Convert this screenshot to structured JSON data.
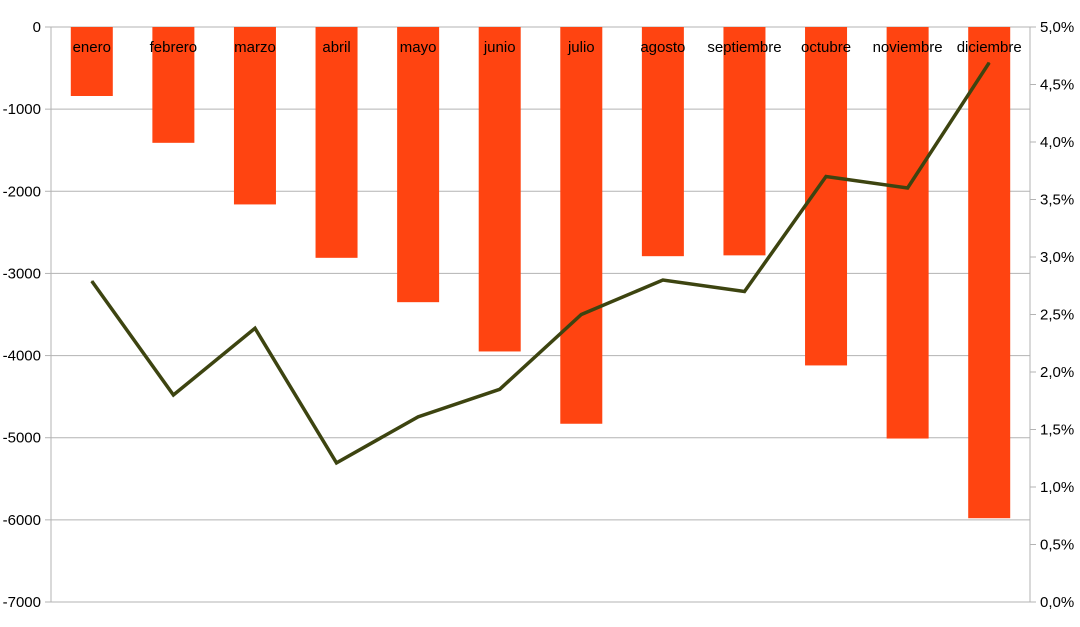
{
  "chart_data": {
    "type": "bar",
    "categories": [
      "enero",
      "febrero",
      "marzo",
      "abril",
      "mayo",
      "junio",
      "julio",
      "agosto",
      "septiembre",
      "octubre",
      "noviembre",
      "diciembre"
    ],
    "series": [
      {
        "type": "bar",
        "axis": "left",
        "color": "#ff4411",
        "values": [
          -840,
          -1410,
          -2160,
          -2810,
          -3350,
          -3950,
          -4830,
          -2790,
          -2780,
          -4120,
          -5010,
          -5980
        ]
      },
      {
        "type": "line",
        "axis": "right",
        "color": "#3d4410",
        "values": [
          0.0279,
          0.018,
          0.0238,
          0.0121,
          0.0161,
          0.0185,
          0.025,
          0.028,
          0.027,
          0.037,
          0.036,
          0.0469
        ]
      }
    ],
    "y_left": {
      "ylim": [
        -7000,
        0
      ],
      "ticks": [
        0,
        -1000,
        -2000,
        -3000,
        -4000,
        -5000,
        -6000,
        -7000
      ],
      "tick_labels": [
        "0",
        "-1000",
        "-2000",
        "-3000",
        "-4000",
        "-5000",
        "-6000",
        "-7000"
      ]
    },
    "y_right": {
      "ylim": [
        0,
        0.05
      ],
      "ticks": [
        0.05,
        0.045,
        0.04,
        0.035,
        0.03,
        0.025,
        0.02,
        0.015,
        0.01,
        0.005,
        0
      ],
      "tick_labels": [
        "5,0%",
        "4,5%",
        "4,0%",
        "3,5%",
        "3,0%",
        "2,5%",
        "2,0%",
        "1,5%",
        "1,0%",
        "0,5%",
        "0,0%"
      ]
    },
    "category_labels_position": "top",
    "grid": true,
    "legend": "none"
  }
}
